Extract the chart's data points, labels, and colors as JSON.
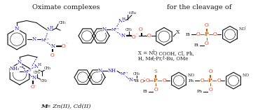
{
  "title_left": "Oximate complexes",
  "title_right": "for the cleavage of",
  "footnote_italic": " = Zn(II), Cd(II)",
  "footnote_bold": "M",
  "substituents_line1": "X = NO",
  "substituents_line2": "H, Me, ",
  "bg_color": "#ffffff",
  "text_color": "#1a1a1a",
  "blue_color": "#1a1aaa",
  "red_color": "#cc2200",
  "orange_color": "#cc5500",
  "sulfur_color": "#888800",
  "gray_color": "#555555",
  "figwidth": 3.78,
  "figheight": 1.57,
  "dpi": 100
}
